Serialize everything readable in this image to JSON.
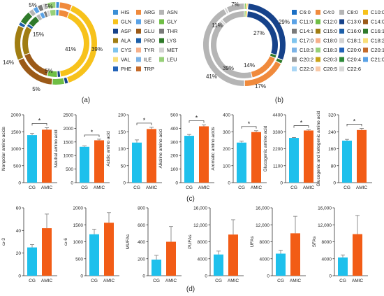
{
  "panel_labels": {
    "a": "(a)",
    "b": "(b)",
    "c": "(c)",
    "d": "(d)"
  },
  "colors": {
    "cg": "#1ec0ec",
    "amic": "#f25c16",
    "axis": "#333333"
  },
  "chart_data": [
    {
      "type": "pie",
      "panel": "a",
      "subtype": "double-donut",
      "legend_items": [
        {
          "name": "HIS",
          "color": "#3b8fd6"
        },
        {
          "name": "ARG",
          "color": "#f08a3c"
        },
        {
          "name": "ASN",
          "color": "#b5b5b5"
        },
        {
          "name": "GLN",
          "color": "#f7c21b"
        },
        {
          "name": "SER",
          "color": "#5aa2e6"
        },
        {
          "name": "GLY",
          "color": "#6fbe45"
        },
        {
          "name": "ASP",
          "color": "#16428a"
        },
        {
          "name": "GLU",
          "color": "#9b5a18"
        },
        {
          "name": "THR",
          "color": "#7a7a7a"
        },
        {
          "name": "ALA",
          "color": "#a07d12"
        },
        {
          "name": "PRO",
          "color": "#1d5fa8"
        },
        {
          "name": "LYS",
          "color": "#2f7a2a"
        },
        {
          "name": "CYS",
          "color": "#7ec4ee"
        },
        {
          "name": "TYR",
          "color": "#f6b08a"
        },
        {
          "name": "MET",
          "color": "#d3d3d3"
        },
        {
          "name": "VAL",
          "color": "#fadf78"
        },
        {
          "name": "ILE",
          "color": "#7cb3e6"
        },
        {
          "name": "LEU",
          "color": "#97d078"
        },
        {
          "name": "PHE",
          "color": "#2363b8"
        },
        {
          "name": "TRP",
          "color": "#c46a2a"
        }
      ],
      "rings": [
        {
          "name": "outer",
          "slices": [
            {
              "color": "#3b8fd6",
              "value": 1.5
            },
            {
              "color": "#f08a3c",
              "value": 5
            },
            {
              "color": "#f7c21b",
              "value": 39
            },
            {
              "color": "#16428a",
              "value": 1.5
            },
            {
              "color": "#6fbe45",
              "value": 5
            },
            {
              "color": "#9b5a18",
              "value": 17
            },
            {
              "color": "#a07d12",
              "value": 14
            },
            {
              "color": "#1d5fa8",
              "value": 1.5
            },
            {
              "color": "#2f7a2a",
              "value": 5
            },
            {
              "color": "#b5b5b5",
              "value": 2
            },
            {
              "color": "#5aa2e6",
              "value": 2
            },
            {
              "color": "#7a7a7a",
              "value": 2
            },
            {
              "color": "#d3d3d3",
              "value": 2
            },
            {
              "color": "#97d078",
              "value": 3.5
            }
          ]
        },
        {
          "name": "inner",
          "slices": [
            {
              "color": "#3b8fd6",
              "value": 1.5
            },
            {
              "color": "#f08a3c",
              "value": 5
            },
            {
              "color": "#f7c21b",
              "value": 41
            },
            {
              "color": "#16428a",
              "value": 1.5
            },
            {
              "color": "#6fbe45",
              "value": 5
            },
            {
              "color": "#9b5a18",
              "value": 15
            },
            {
              "color": "#a07d12",
              "value": 14
            },
            {
              "color": "#1d5fa8",
              "value": 1.5
            },
            {
              "color": "#2f7a2a",
              "value": 5
            },
            {
              "color": "#b5b5b5",
              "value": 2
            },
            {
              "color": "#5aa2e6",
              "value": 2
            },
            {
              "color": "#7a7a7a",
              "value": 1.5
            },
            {
              "color": "#d3d3d3",
              "value": 1.5
            },
            {
              "color": "#97d078",
              "value": 3
            }
          ]
        }
      ],
      "slice_labels": [
        "41%",
        "39%",
        "15%",
        "14%",
        "5%",
        "5%",
        "5%",
        "5%"
      ]
    },
    {
      "type": "pie",
      "panel": "b",
      "subtype": "double-donut",
      "legend_items": [
        {
          "name": "C6:0",
          "color": "#1a6fc4"
        },
        {
          "name": "C4:0",
          "color": "#f08a3c"
        },
        {
          "name": "C8:0",
          "color": "#b5b5b5"
        },
        {
          "name": "C10:0",
          "color": "#f7c21b"
        },
        {
          "name": "C11:0",
          "color": "#5aa2e6"
        },
        {
          "name": "C12:0",
          "color": "#6fbe45"
        },
        {
          "name": "C13:0",
          "color": "#16428a"
        },
        {
          "name": "C14:0",
          "color": "#9b5a18"
        },
        {
          "name": "C14:1",
          "color": "#7a7a7a"
        },
        {
          "name": "C15:0",
          "color": "#a07d12"
        },
        {
          "name": "C16:0",
          "color": "#1d5fa8"
        },
        {
          "name": "C16:1",
          "color": "#2f7a2a"
        },
        {
          "name": "C17:0",
          "color": "#7ec4ee"
        },
        {
          "name": "C18:0",
          "color": "#f6b08a"
        },
        {
          "name": "C18:1",
          "color": "#d3d3d3"
        },
        {
          "name": "C18:2",
          "color": "#fadf78"
        },
        {
          "name": "C18:3",
          "color": "#7cb3e6"
        },
        {
          "name": "C18:3",
          "color": "#97d078"
        },
        {
          "name": "C20:0",
          "color": "#2363b8"
        },
        {
          "name": "C20:1",
          "color": "#c46a2a"
        },
        {
          "name": "C20:2",
          "color": "#9a9a9a"
        },
        {
          "name": "C20:3",
          "color": "#c9a318"
        },
        {
          "name": "C20:4",
          "color": "#2f8a3a"
        },
        {
          "name": "C21:0",
          "color": "#5aa2e6"
        },
        {
          "name": "C22:0",
          "color": "#a9d6f5"
        },
        {
          "name": "C20:5",
          "color": "#f9c9a8"
        },
        {
          "name": "C22:6",
          "color": "#d8d8d8"
        }
      ],
      "rings": [
        {
          "name": "outer",
          "slices": [
            {
              "color": "#6fbe45",
              "value": 0.7
            },
            {
              "color": "#f7c21b",
              "value": 0.7
            },
            {
              "color": "#16428a",
              "value": 29
            },
            {
              "color": "#2f7a2a",
              "value": 1.5
            },
            {
              "color": "#f08a3c",
              "value": 17
            },
            {
              "color": "#b5b5b5",
              "value": 41
            },
            {
              "color": "#d3d3d3",
              "value": 1
            },
            {
              "color": "#b5b5b5",
              "value": 7
            }
          ]
        },
        {
          "name": "inner",
          "slices": [
            {
              "color": "#6fbe45",
              "value": 0.7
            },
            {
              "color": "#f7c21b",
              "value": 0.7
            },
            {
              "color": "#16428a",
              "value": 27
            },
            {
              "color": "#2f7a2a",
              "value": 1.5
            },
            {
              "color": "#f08a3c",
              "value": 14
            },
            {
              "color": "#b5b5b5",
              "value": 39
            },
            {
              "color": "#d3d3d3",
              "value": 1
            },
            {
              "color": "#b5b5b5",
              "value": 11
            }
          ]
        }
      ],
      "slice_labels": [
        "7%",
        "29%",
        "27%",
        "11%",
        "14%",
        "17%",
        "39%",
        "41%"
      ]
    },
    {
      "type": "bar",
      "panel": "c",
      "ylabel": "Nonpolar amino acids",
      "categories": [
        "CG",
        "AMIC"
      ],
      "values": [
        1400,
        1560
      ],
      "errors": [
        50,
        60
      ],
      "ylim": [
        0,
        2000
      ],
      "yticks": [
        "0",
        "500",
        "1000",
        "1500",
        "2000"
      ],
      "significance": "*"
    },
    {
      "type": "bar",
      "panel": "c",
      "ylabel": "Neutral amino acid",
      "categories": [
        "CG",
        "AMIC"
      ],
      "values": [
        1320,
        1560
      ],
      "errors": [
        30,
        40
      ],
      "ylim": [
        0,
        2500
      ],
      "yticks": [
        "0",
        "500",
        "1000",
        "1500",
        "2000",
        "2500"
      ],
      "significance": "*"
    },
    {
      "type": "bar",
      "panel": "c",
      "ylabel": "Acidic amino acid",
      "categories": [
        "CG",
        "AMIC"
      ],
      "values": [
        118,
        158
      ],
      "errors": [
        8,
        5
      ],
      "ylim": [
        0,
        200
      ],
      "yticks": [
        "0",
        "50",
        "100",
        "150",
        "200"
      ],
      "significance": "*"
    },
    {
      "type": "bar",
      "panel": "c",
      "ylabel": "Alkaline amino acid",
      "categories": [
        "CG",
        "AMIC"
      ],
      "values": [
        345,
        415
      ],
      "errors": [
        10,
        10
      ],
      "ylim": [
        0,
        500
      ],
      "yticks": [
        "0",
        "100",
        "200",
        "300",
        "400",
        "500"
      ],
      "significance": "*"
    },
    {
      "type": "bar",
      "panel": "c",
      "ylabel": "Aromatic amino acids",
      "categories": [
        "CG",
        "AMIC"
      ],
      "values": [
        236,
        298
      ],
      "errors": [
        8,
        8
      ],
      "ylim": [
        0,
        400
      ],
      "yticks": [
        "0",
        "100",
        "200",
        "300",
        "400"
      ],
      "significance": "*"
    },
    {
      "type": "bar",
      "panel": "c",
      "ylabel": "Glucogenic amino acid",
      "categories": [
        "CG",
        "AMIC"
      ],
      "values": [
        2900,
        3380
      ],
      "errors": [
        30,
        40
      ],
      "ylim": [
        0,
        4400
      ],
      "yticks": [
        "0",
        "1100",
        "2200",
        "3300",
        "4400"
      ],
      "significance": "*"
    },
    {
      "type": "bar",
      "panel": "c",
      "ylabel": "Glucogenic and ketogenic amino acid",
      "categories": [
        "CG",
        "AMIC"
      ],
      "values": [
        198,
        248
      ],
      "errors": [
        6,
        8
      ],
      "ylim": [
        0,
        320
      ],
      "yticks": [
        "0",
        "80",
        "160",
        "240",
        "320"
      ],
      "significance": "*"
    },
    {
      "type": "bar",
      "panel": "d",
      "ylabel": "ω-3",
      "categories": [
        "CG",
        "AMIC"
      ],
      "values": [
        25,
        42
      ],
      "errors": [
        2.5,
        12.5
      ],
      "ylim": [
        0,
        60
      ],
      "yticks": [
        "0",
        "20",
        "40",
        "60"
      ],
      "significance": ""
    },
    {
      "type": "bar",
      "panel": "d",
      "ylabel": "ω-6",
      "categories": [
        "CG",
        "AMIC"
      ],
      "values": [
        1220,
        1560
      ],
      "errors": [
        150,
        300
      ],
      "ylim": [
        0,
        2000
      ],
      "yticks": [
        "0",
        "500",
        "1000",
        "1500",
        "2000"
      ],
      "significance": ""
    },
    {
      "type": "bar",
      "panel": "d",
      "ylabel": "MUFAs",
      "categories": [
        "CG",
        "AMIC"
      ],
      "values": [
        190,
        400
      ],
      "errors": [
        50,
        180
      ],
      "ylim": [
        0,
        800
      ],
      "yticks": [
        "0",
        "200",
        "400",
        "600",
        "800"
      ],
      "significance": ""
    },
    {
      "type": "bar",
      "panel": "d",
      "ylabel": "PUFAs",
      "categories": [
        "CG",
        "AMIC"
      ],
      "values": [
        5000,
        9700
      ],
      "errors": [
        800,
        3500
      ],
      "ylim": [
        0,
        16000
      ],
      "yticks": [
        "0",
        "4000",
        "8000",
        "12,000",
        "16,000"
      ],
      "significance": ""
    },
    {
      "type": "bar",
      "panel": "d",
      "ylabel": "UFAs",
      "categories": [
        "CG",
        "AMIC"
      ],
      "values": [
        5200,
        10000
      ],
      "errors": [
        800,
        4000
      ],
      "ylim": [
        0,
        16000
      ],
      "yticks": [
        "0",
        "4000",
        "8000",
        "12,000",
        "16,000"
      ],
      "significance": ""
    },
    {
      "type": "bar",
      "panel": "d",
      "ylabel": "SFAs",
      "categories": [
        "CG",
        "AMIC"
      ],
      "values": [
        4300,
        9800
      ],
      "errors": [
        600,
        4400
      ],
      "ylim": [
        0,
        16000
      ],
      "yticks": [
        "0",
        "4000",
        "8000",
        "12,000",
        "16,000"
      ],
      "significance": ""
    }
  ]
}
